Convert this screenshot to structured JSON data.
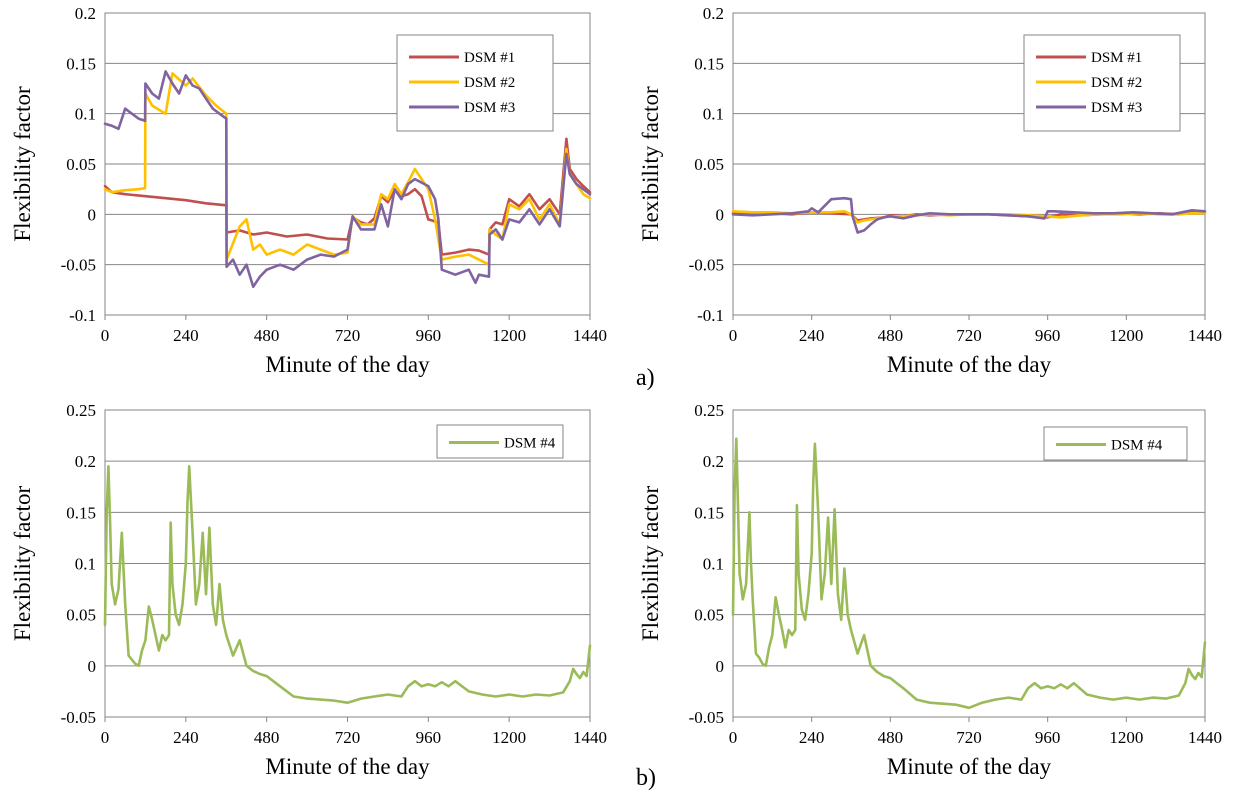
{
  "figure": {
    "panel_labels": [
      "a)",
      "b)"
    ]
  },
  "chart_data": [
    {
      "id": "top-left",
      "type": "line",
      "xlabel": "Minute of the day",
      "ylabel": "Flexibility factor",
      "xlim": [
        0,
        1440
      ],
      "ylim": [
        -0.1,
        0.2
      ],
      "xticks": [
        0,
        240,
        480,
        720,
        960,
        1200,
        1440
      ],
      "yticks": [
        -0.1,
        -0.05,
        0,
        0.05,
        0.1,
        0.15,
        0.2
      ],
      "ytick_labels": [
        "-0.1",
        "-0.05",
        "0",
        "0.05",
        "0.1",
        "0.15",
        "0.2"
      ],
      "grid": "horizontal",
      "legend": "top-right",
      "series": [
        {
          "name": "DSM #1",
          "color": "#c0504d",
          "x": [
            0,
            20,
            60,
            120,
            180,
            240,
            300,
            360,
            361,
            400,
            440,
            480,
            540,
            600,
            660,
            720,
            735,
            760,
            780,
            800,
            820,
            840,
            860,
            880,
            900,
            920,
            940,
            960,
            990,
            1000,
            1040,
            1080,
            1110,
            1140,
            1142,
            1160,
            1180,
            1200,
            1230,
            1260,
            1290,
            1320,
            1350,
            1370,
            1380,
            1400,
            1420,
            1440
          ],
          "y": [
            0.028,
            0.022,
            0.02,
            0.018,
            0.016,
            0.014,
            0.011,
            0.009,
            -0.018,
            -0.016,
            -0.02,
            -0.018,
            -0.022,
            -0.02,
            -0.024,
            -0.025,
            -0.003,
            -0.008,
            -0.01,
            -0.004,
            0.018,
            0.012,
            0.024,
            0.018,
            0.02,
            0.025,
            0.018,
            -0.005,
            -0.008,
            -0.04,
            -0.038,
            -0.035,
            -0.036,
            -0.04,
            -0.015,
            -0.008,
            -0.01,
            0.015,
            0.008,
            0.02,
            0.005,
            0.015,
            0.0,
            0.075,
            0.045,
            0.035,
            0.028,
            0.022
          ]
        },
        {
          "name": "DSM #2",
          "color": "#ffc000",
          "x": [
            0,
            20,
            60,
            100,
            119,
            120,
            140,
            180,
            200,
            240,
            260,
            300,
            330,
            360,
            361,
            400,
            420,
            440,
            460,
            480,
            520,
            560,
            600,
            640,
            680,
            720,
            735,
            760,
            800,
            820,
            840,
            860,
            880,
            900,
            920,
            960,
            980,
            1000,
            1040,
            1080,
            1110,
            1140,
            1142,
            1160,
            1180,
            1200,
            1230,
            1260,
            1290,
            1320,
            1350,
            1370,
            1380,
            1400,
            1420,
            1440
          ],
          "y": [
            0.025,
            0.022,
            0.024,
            0.025,
            0.026,
            0.12,
            0.108,
            0.1,
            0.14,
            0.128,
            0.135,
            0.118,
            0.108,
            0.1,
            -0.045,
            -0.012,
            -0.005,
            -0.035,
            -0.03,
            -0.04,
            -0.035,
            -0.04,
            -0.03,
            -0.035,
            -0.04,
            -0.038,
            -0.002,
            -0.01,
            -0.01,
            0.02,
            0.015,
            0.03,
            0.02,
            0.032,
            0.045,
            0.025,
            -0.005,
            -0.045,
            -0.042,
            -0.04,
            -0.045,
            -0.05,
            -0.015,
            -0.02,
            -0.025,
            0.01,
            0.005,
            0.015,
            -0.005,
            0.01,
            -0.01,
            0.065,
            0.04,
            0.03,
            0.02,
            0.016
          ]
        },
        {
          "name": "DSM #3",
          "color": "#8064a2",
          "x": [
            0,
            20,
            40,
            60,
            80,
            100,
            119,
            120,
            140,
            160,
            180,
            200,
            220,
            240,
            260,
            280,
            300,
            320,
            340,
            360,
            361,
            380,
            400,
            420,
            440,
            460,
            480,
            520,
            560,
            600,
            640,
            680,
            720,
            735,
            760,
            800,
            820,
            840,
            860,
            880,
            900,
            920,
            960,
            980,
            990,
            1000,
            1040,
            1080,
            1100,
            1110,
            1140,
            1142,
            1160,
            1180,
            1200,
            1230,
            1260,
            1290,
            1320,
            1350,
            1370,
            1380,
            1400,
            1420,
            1440
          ],
          "y": [
            0.09,
            0.088,
            0.085,
            0.105,
            0.1,
            0.095,
            0.093,
            0.13,
            0.12,
            0.115,
            0.142,
            0.13,
            0.12,
            0.138,
            0.128,
            0.125,
            0.115,
            0.105,
            0.1,
            0.095,
            -0.052,
            -0.045,
            -0.06,
            -0.05,
            -0.072,
            -0.062,
            -0.055,
            -0.05,
            -0.055,
            -0.045,
            -0.04,
            -0.042,
            -0.035,
            -0.002,
            -0.015,
            -0.015,
            0.01,
            -0.012,
            0.025,
            0.015,
            0.03,
            0.035,
            0.028,
            0.015,
            -0.005,
            -0.055,
            -0.06,
            -0.055,
            -0.068,
            -0.06,
            -0.062,
            -0.02,
            -0.015,
            -0.025,
            -0.005,
            -0.008,
            0.005,
            -0.01,
            0.005,
            -0.012,
            0.06,
            0.04,
            0.03,
            0.025,
            0.02
          ]
        }
      ]
    },
    {
      "id": "top-right",
      "type": "line",
      "xlabel": "Minute of the day",
      "ylabel": "Flexibility factor",
      "xlim": [
        0,
        1440
      ],
      "ylim": [
        -0.1,
        0.2
      ],
      "xticks": [
        0,
        240,
        480,
        720,
        960,
        1200,
        1440
      ],
      "yticks": [
        -0.1,
        -0.05,
        0,
        0.05,
        0.1,
        0.15,
        0.2
      ],
      "ytick_labels": [
        "-0.1",
        "-0.05",
        "0",
        "0.05",
        "0.1",
        "0.15",
        "0.2"
      ],
      "grid": "horizontal",
      "legend": "top-right",
      "series": [
        {
          "name": "DSM #1",
          "color": "#c0504d",
          "x": [
            0,
            60,
            120,
            180,
            240,
            300,
            360,
            380,
            420,
            460,
            480,
            520,
            560,
            600,
            660,
            720,
            780,
            840,
            900,
            960,
            1000,
            1060,
            1120,
            1180,
            1240,
            1300,
            1360,
            1400,
            1440
          ],
          "y": [
            0.001,
            0.0,
            0.001,
            0.0,
            0.002,
            0.001,
            0.0,
            -0.006,
            -0.004,
            -0.003,
            -0.001,
            -0.002,
            0.0,
            -0.001,
            0.0,
            0.0,
            0.0,
            -0.001,
            -0.002,
            -0.003,
            0.0,
            -0.001,
            0.0,
            0.001,
            0.0,
            0.001,
            0.0,
            0.002,
            0.001
          ]
        },
        {
          "name": "DSM #2",
          "color": "#ffc000",
          "x": [
            0,
            60,
            120,
            180,
            240,
            300,
            340,
            360,
            380,
            400,
            440,
            480,
            520,
            560,
            600,
            660,
            720,
            780,
            840,
            900,
            960,
            1000,
            1060,
            1120,
            1180,
            1240,
            1300,
            1360,
            1400,
            1440
          ],
          "y": [
            0.003,
            0.002,
            0.002,
            0.001,
            0.002,
            0.002,
            0.003,
            0.0,
            -0.008,
            -0.006,
            -0.004,
            -0.002,
            -0.002,
            -0.001,
            0.0,
            -0.001,
            0.0,
            0.0,
            0.0,
            -0.001,
            -0.002,
            -0.003,
            -0.001,
            0.0,
            0.0,
            0.001,
            0.0,
            0.0,
            0.001,
            0.001
          ]
        },
        {
          "name": "DSM #3",
          "color": "#8064a2",
          "x": [
            0,
            60,
            120,
            180,
            230,
            240,
            260,
            300,
            340,
            360,
            365,
            380,
            400,
            420,
            440,
            460,
            480,
            520,
            560,
            600,
            660,
            720,
            780,
            840,
            900,
            950,
            960,
            980,
            1040,
            1100,
            1160,
            1220,
            1280,
            1340,
            1400,
            1440
          ],
          "y": [
            0.0,
            -0.001,
            0.0,
            0.001,
            0.003,
            0.006,
            0.002,
            0.015,
            0.016,
            0.015,
            -0.002,
            -0.018,
            -0.016,
            -0.01,
            -0.005,
            -0.003,
            -0.002,
            -0.004,
            -0.001,
            0.001,
            0.0,
            0.0,
            0.0,
            -0.001,
            -0.002,
            -0.004,
            0.003,
            0.003,
            0.002,
            0.001,
            0.001,
            0.002,
            0.001,
            0.0,
            0.004,
            0.003
          ]
        }
      ]
    },
    {
      "id": "bottom-left",
      "type": "line",
      "xlabel": "Minute of the day",
      "ylabel": "Flexibility factor",
      "xlim": [
        0,
        1440
      ],
      "ylim": [
        -0.05,
        0.25
      ],
      "xticks": [
        0,
        240,
        480,
        720,
        960,
        1200,
        1440
      ],
      "yticks": [
        -0.05,
        0,
        0.05,
        0.1,
        0.15,
        0.2,
        0.25
      ],
      "ytick_labels": [
        "-0.05",
        "0",
        "0.05",
        "0.1",
        "0.15",
        "0.2",
        "0.25"
      ],
      "grid": "horizontal",
      "legend": "top-right",
      "series": [
        {
          "name": "DSM #4",
          "color": "#9bbb59",
          "x": [
            0,
            5,
            10,
            15,
            20,
            30,
            40,
            50,
            55,
            60,
            70,
            80,
            90,
            100,
            110,
            120,
            130,
            140,
            150,
            160,
            170,
            180,
            190,
            195,
            200,
            210,
            220,
            230,
            240,
            245,
            250,
            260,
            270,
            280,
            290,
            300,
            310,
            320,
            330,
            340,
            350,
            360,
            380,
            400,
            420,
            440,
            460,
            480,
            520,
            560,
            600,
            640,
            680,
            720,
            760,
            800,
            840,
            880,
            900,
            920,
            940,
            960,
            980,
            1000,
            1020,
            1040,
            1080,
            1120,
            1160,
            1200,
            1240,
            1280,
            1320,
            1360,
            1380,
            1390,
            1400,
            1410,
            1420,
            1430,
            1440
          ],
          "y": [
            0.04,
            0.15,
            0.195,
            0.14,
            0.08,
            0.06,
            0.075,
            0.13,
            0.095,
            0.06,
            0.01,
            0.006,
            0.002,
            0.0,
            0.015,
            0.025,
            0.058,
            0.045,
            0.03,
            0.015,
            0.03,
            0.025,
            0.03,
            0.14,
            0.08,
            0.05,
            0.04,
            0.06,
            0.1,
            0.16,
            0.195,
            0.13,
            0.06,
            0.08,
            0.13,
            0.07,
            0.135,
            0.06,
            0.04,
            0.08,
            0.045,
            0.03,
            0.01,
            0.025,
            0.0,
            -0.005,
            -0.008,
            -0.01,
            -0.02,
            -0.03,
            -0.032,
            -0.033,
            -0.034,
            -0.036,
            -0.032,
            -0.03,
            -0.028,
            -0.03,
            -0.02,
            -0.015,
            -0.02,
            -0.018,
            -0.02,
            -0.016,
            -0.02,
            -0.015,
            -0.025,
            -0.028,
            -0.03,
            -0.028,
            -0.03,
            -0.028,
            -0.029,
            -0.026,
            -0.015,
            -0.003,
            -0.008,
            -0.012,
            -0.006,
            -0.01,
            0.02
          ]
        }
      ]
    },
    {
      "id": "bottom-right",
      "type": "line",
      "xlabel": "Minute of the day",
      "ylabel": "Flexibility factor",
      "xlim": [
        0,
        1440
      ],
      "ylim": [
        -0.05,
        0.25
      ],
      "xticks": [
        0,
        240,
        480,
        720,
        960,
        1200,
        1440
      ],
      "yticks": [
        -0.05,
        0,
        0.05,
        0.1,
        0.15,
        0.2,
        0.25
      ],
      "ytick_labels": [
        "-0.05",
        "0",
        "0.05",
        "0.1",
        "0.15",
        "0.2",
        "0.25"
      ],
      "grid": "horizontal",
      "legend": "top-right",
      "series": [
        {
          "name": "DSM #4",
          "color": "#9bbb59",
          "x": [
            0,
            5,
            10,
            15,
            20,
            30,
            40,
            50,
            55,
            60,
            70,
            80,
            90,
            100,
            110,
            120,
            130,
            140,
            150,
            160,
            170,
            180,
            190,
            195,
            200,
            210,
            220,
            230,
            240,
            245,
            250,
            260,
            270,
            280,
            290,
            300,
            310,
            320,
            330,
            340,
            350,
            360,
            380,
            400,
            420,
            440,
            460,
            480,
            520,
            560,
            600,
            640,
            680,
            720,
            760,
            800,
            840,
            880,
            900,
            920,
            940,
            960,
            980,
            1000,
            1020,
            1040,
            1080,
            1120,
            1160,
            1200,
            1240,
            1280,
            1320,
            1360,
            1380,
            1390,
            1400,
            1410,
            1420,
            1430,
            1440
          ],
          "y": [
            0.05,
            0.17,
            0.222,
            0.16,
            0.09,
            0.065,
            0.08,
            0.15,
            0.1,
            0.065,
            0.012,
            0.008,
            0.002,
            0.0,
            0.018,
            0.03,
            0.067,
            0.05,
            0.035,
            0.018,
            0.035,
            0.03,
            0.035,
            0.157,
            0.09,
            0.055,
            0.045,
            0.07,
            0.11,
            0.18,
            0.217,
            0.15,
            0.065,
            0.09,
            0.145,
            0.08,
            0.153,
            0.07,
            0.045,
            0.095,
            0.05,
            0.035,
            0.012,
            0.03,
            0.0,
            -0.006,
            -0.01,
            -0.012,
            -0.022,
            -0.033,
            -0.036,
            -0.037,
            -0.038,
            -0.041,
            -0.036,
            -0.033,
            -0.031,
            -0.033,
            -0.022,
            -0.017,
            -0.022,
            -0.02,
            -0.022,
            -0.018,
            -0.022,
            -0.017,
            -0.028,
            -0.031,
            -0.033,
            -0.031,
            -0.033,
            -0.031,
            -0.032,
            -0.029,
            -0.017,
            -0.003,
            -0.009,
            -0.013,
            -0.007,
            -0.011,
            0.023
          ]
        }
      ]
    }
  ]
}
